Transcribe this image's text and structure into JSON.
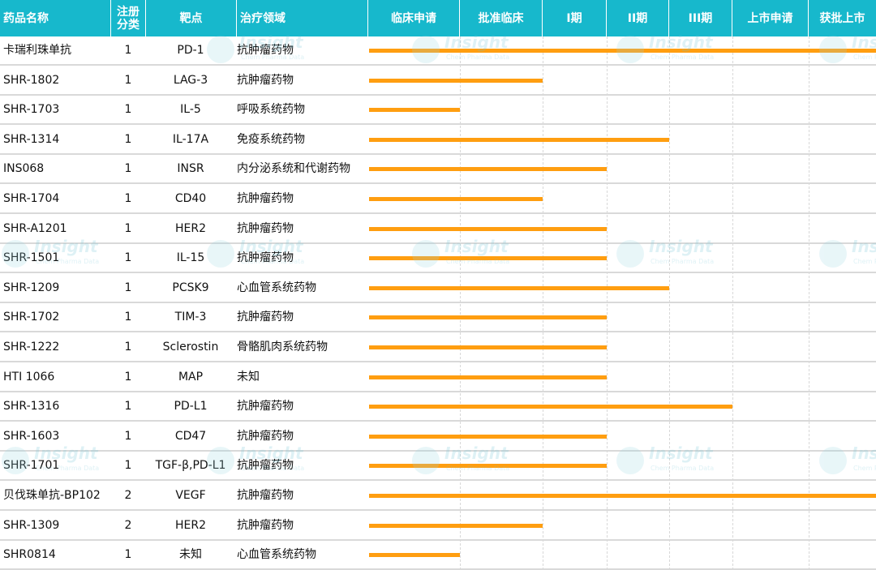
{
  "colors": {
    "header_bg": "#17b8cc",
    "bar": "#ff9e10",
    "row_border": "#d9d9d9"
  },
  "watermark": {
    "brand": "Insight",
    "sub": "Chem Pharma Data"
  },
  "chart_data": {
    "type": "bar",
    "orientation": "horizontal",
    "stages": [
      "临床申请",
      "批准临床",
      "I期",
      "II期",
      "III期",
      "上市申请",
      "获批上市"
    ],
    "columns": [
      "药品名称",
      "注册分类",
      "靶点",
      "治疗领域"
    ],
    "rows": [
      {
        "name": "卡瑞利珠单抗",
        "cls": "1",
        "target": "PD-1",
        "area": "抗肿瘤药物",
        "stage_progress": 7
      },
      {
        "name": "SHR-1802",
        "cls": "1",
        "target": "LAG-3",
        "area": "抗肿瘤药物",
        "stage_progress": 2
      },
      {
        "name": "SHR-1703",
        "cls": "1",
        "target": "IL-5",
        "area": "呼吸系统药物",
        "stage_progress": 1
      },
      {
        "name": "SHR-1314",
        "cls": "1",
        "target": "IL-17A",
        "area": "免疫系统药物",
        "stage_progress": 4
      },
      {
        "name": "INS068",
        "cls": "1",
        "target": "INSR",
        "area": "内分泌系统和代谢药物",
        "stage_progress": 3
      },
      {
        "name": "SHR-1704",
        "cls": "1",
        "target": "CD40",
        "area": "抗肿瘤药物",
        "stage_progress": 2
      },
      {
        "name": "SHR-A1201",
        "cls": "1",
        "target": "HER2",
        "area": "抗肿瘤药物",
        "stage_progress": 3
      },
      {
        "name": "SHR-1501",
        "cls": "1",
        "target": "IL-15",
        "area": "抗肿瘤药物",
        "stage_progress": 3
      },
      {
        "name": "SHR-1209",
        "cls": "1",
        "target": "PCSK9",
        "area": "心血管系统药物",
        "stage_progress": 4
      },
      {
        "name": "SHR-1702",
        "cls": "1",
        "target": "TIM-3",
        "area": "抗肿瘤药物",
        "stage_progress": 3
      },
      {
        "name": "SHR-1222",
        "cls": "1",
        "target": "Sclerostin",
        "area": "骨骼肌肉系统药物",
        "stage_progress": 3
      },
      {
        "name": "HTI 1066",
        "cls": "1",
        "target": "MAP",
        "area": "未知",
        "stage_progress": 3
      },
      {
        "name": "SHR-1316",
        "cls": "1",
        "target": "PD-L1",
        "area": "抗肿瘤药物",
        "stage_progress": 5
      },
      {
        "name": "SHR-1603",
        "cls": "1",
        "target": "CD47",
        "area": "抗肿瘤药物",
        "stage_progress": 3
      },
      {
        "name": "SHR-1701",
        "cls": "1",
        "target": "TGF-β,PD-L1",
        "area": "抗肿瘤药物",
        "stage_progress": 3
      },
      {
        "name": "贝伐珠单抗-BP102",
        "cls": "2",
        "target": "VEGF",
        "area": "抗肿瘤药物",
        "stage_progress": 7
      },
      {
        "name": "SHR-1309",
        "cls": "2",
        "target": "HER2",
        "area": "抗肿瘤药物",
        "stage_progress": 2
      },
      {
        "name": "SHR0814",
        "cls": "1",
        "target": "未知",
        "area": "心血管系统药物",
        "stage_progress": 1
      }
    ]
  }
}
